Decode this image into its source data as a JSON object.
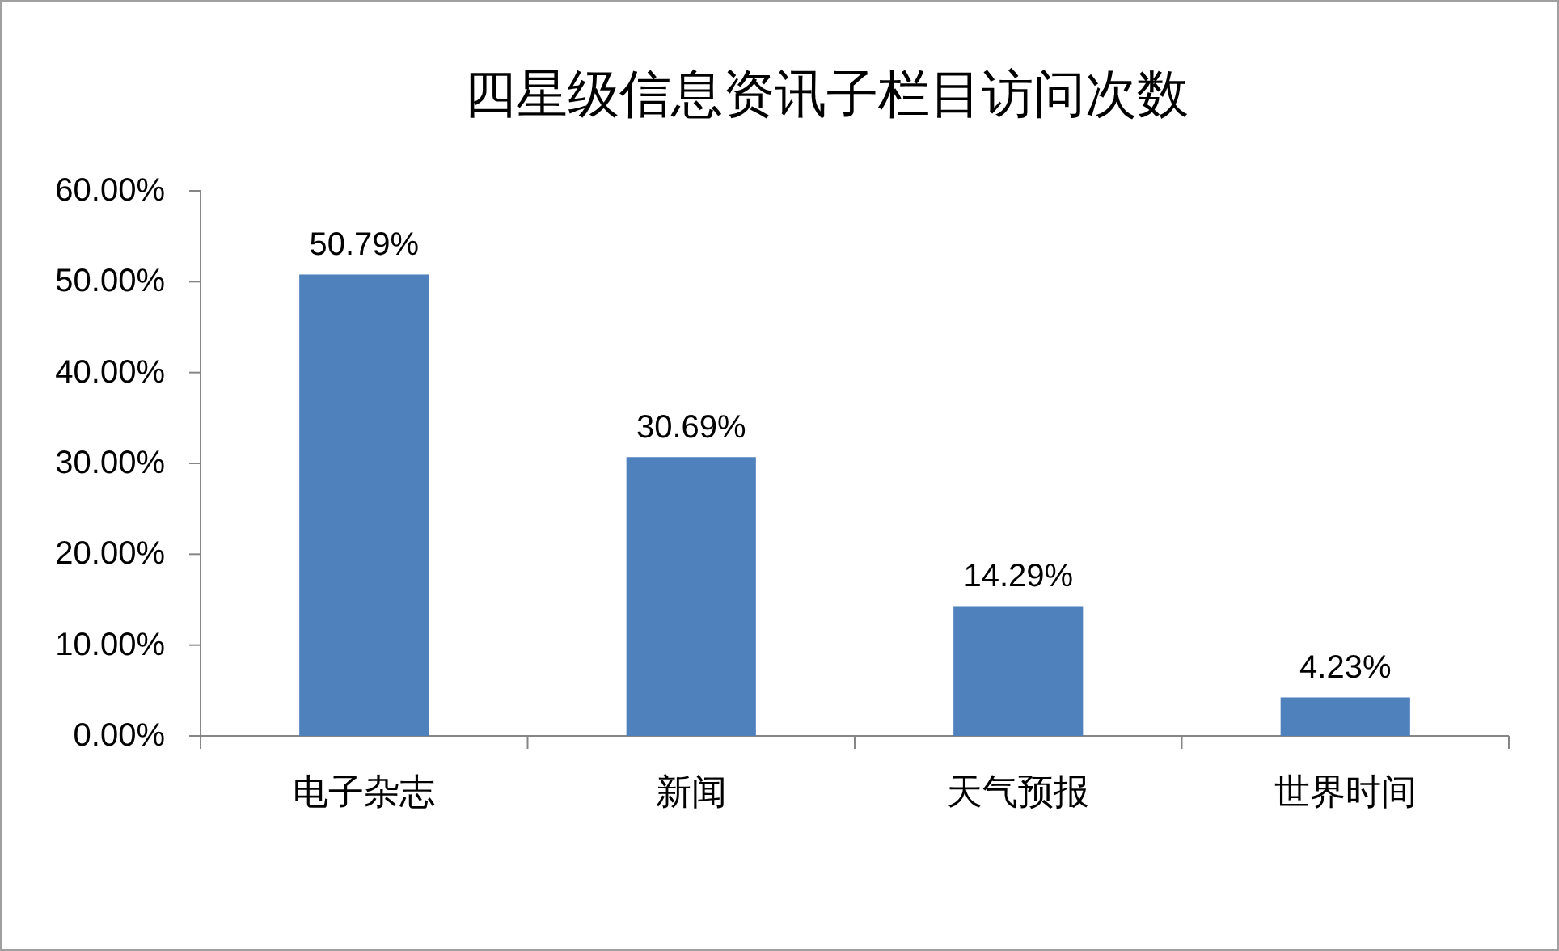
{
  "chart_data": {
    "type": "bar",
    "title": "四星级信息资讯子栏目访问次数",
    "categories": [
      "电子杂志",
      "新闻",
      "天气预报",
      "世界时间"
    ],
    "values": [
      50.79,
      30.69,
      14.29,
      4.23
    ],
    "color": "#4f81bd",
    "value_labels": [
      "50.79%",
      "30.69%",
      "14.29%",
      "4.23%"
    ],
    "ylim": [
      0,
      60
    ],
    "yticks": [
      {
        "value": 0,
        "label": "0.00%"
      },
      {
        "value": 10,
        "label": "10.00%"
      },
      {
        "value": 20,
        "label": "20.00%"
      },
      {
        "value": 30,
        "label": "30.00%"
      },
      {
        "value": 40,
        "label": "40.00%"
      },
      {
        "value": 50,
        "label": "50.00%"
      },
      {
        "value": 60,
        "label": "60.00%"
      }
    ]
  }
}
